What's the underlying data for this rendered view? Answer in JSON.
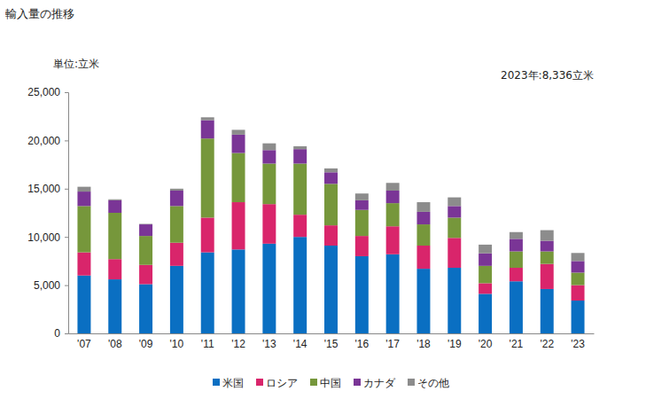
{
  "chart_data": {
    "type": "bar",
    "stacked": true,
    "title": "輸入量の推移",
    "y_label": "単位:立米",
    "annotations": [
      "2023年:8,336立米"
    ],
    "categories": [
      "'07",
      "'08",
      "'09",
      "'10",
      "'11",
      "'12",
      "'13",
      "'14",
      "'15",
      "'16",
      "'17",
      "'18",
      "'19",
      "'20",
      "'21",
      "'22",
      "'23"
    ],
    "series": [
      {
        "name": "米国",
        "color": "#0a6fc2",
        "values": [
          6000,
          5600,
          5100,
          7000,
          8400,
          8700,
          9300,
          10000,
          9100,
          8000,
          8200,
          6700,
          6800,
          4100,
          5400,
          4600,
          3400
        ]
      },
      {
        "name": "ロシア",
        "color": "#d9256b",
        "values": [
          2400,
          2100,
          2000,
          2400,
          3600,
          4900,
          4100,
          2300,
          2100,
          2100,
          2900,
          2400,
          3100,
          1100,
          1400,
          2600,
          1600
        ]
      },
      {
        "name": "中国",
        "color": "#76973b",
        "values": [
          4800,
          4800,
          3000,
          3800,
          8200,
          5100,
          4200,
          5300,
          4300,
          2700,
          2400,
          2200,
          2100,
          1800,
          1700,
          1300,
          1300
        ]
      },
      {
        "name": "カナダ",
        "color": "#7a3596",
        "values": [
          1500,
          1300,
          1200,
          1600,
          1900,
          1900,
          1400,
          1500,
          1200,
          1000,
          1300,
          1300,
          1200,
          1300,
          1300,
          1100,
          1200
        ]
      },
      {
        "name": "その他",
        "color": "#8c8c8c",
        "values": [
          500,
          100,
          50,
          200,
          300,
          500,
          700,
          300,
          400,
          700,
          800,
          1000,
          900,
          900,
          700,
          1100,
          836
        ]
      }
    ],
    "ylim": [
      0,
      25000
    ],
    "yticks": [
      0,
      {
        "value": 5000,
        "label": "5,000"
      },
      {
        "value": 10000,
        "label": "10,000"
      },
      {
        "value": 15000,
        "label": "15,000"
      },
      {
        "value": 20000,
        "label": "20,000"
      },
      {
        "value": 25000,
        "label": "25,000"
      }
    ],
    "grid": false,
    "legend": "bottom"
  }
}
